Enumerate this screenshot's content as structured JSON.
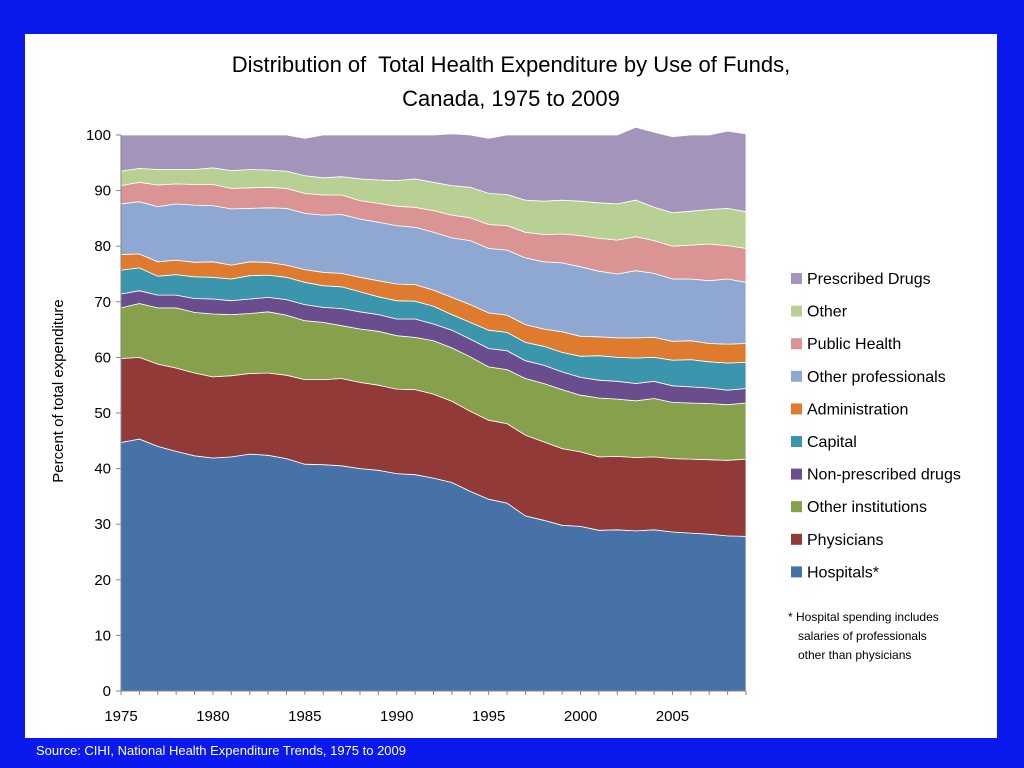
{
  "slide": {
    "source": "Source: CIHI, National Health Expenditure Trends, 1975 to 2009",
    "footnote": [
      "* Hospital spending includes",
      "salaries of professionals",
      "other than physicians"
    ]
  },
  "chart_data": {
    "type": "area",
    "stacked": true,
    "title": [
      "Distribution of  Total Health Expenditure by Use of Funds,",
      "Canada, 1975 to 2009"
    ],
    "ylabel": "Percent of total expenditure",
    "xlabel": "",
    "ylim": [
      0,
      100
    ],
    "yticks": [
      0,
      10,
      20,
      30,
      40,
      50,
      60,
      70,
      80,
      90,
      100
    ],
    "xlim": [
      1975,
      2009
    ],
    "xticks": [
      1975,
      1980,
      1985,
      1990,
      1995,
      2000,
      2005
    ],
    "legend_position": "right",
    "x": [
      1975,
      1976,
      1977,
      1978,
      1979,
      1980,
      1981,
      1982,
      1983,
      1984,
      1985,
      1986,
      1987,
      1988,
      1989,
      1990,
      1991,
      1992,
      1993,
      1994,
      1995,
      1996,
      1997,
      1998,
      1999,
      2000,
      2001,
      2002,
      2003,
      2004,
      2005,
      2006,
      2007,
      2008,
      2009
    ],
    "series": [
      {
        "name": "Hospitals*",
        "color": "#4672a8",
        "values": [
          44.7,
          45.3,
          44.0,
          43.1,
          42.3,
          41.9,
          42.1,
          42.6,
          42.4,
          41.8,
          40.8,
          40.7,
          40.5,
          40.0,
          39.7,
          39.1,
          38.9,
          38.3,
          37.5,
          35.9,
          34.5,
          33.8,
          31.5,
          30.7,
          29.8,
          29.6,
          28.9,
          29.0,
          28.8,
          29.0,
          28.6,
          28.4,
          28.2,
          27.9,
          27.8
        ]
      },
      {
        "name": "Physicians",
        "color": "#913a38",
        "values": [
          15.1,
          14.7,
          14.8,
          15.0,
          14.9,
          14.6,
          14.6,
          14.5,
          14.8,
          15.0,
          15.2,
          15.3,
          15.7,
          15.5,
          15.3,
          15.2,
          15.3,
          15.1,
          14.6,
          14.4,
          14.2,
          14.3,
          14.5,
          14.1,
          13.8,
          13.4,
          13.2,
          13.2,
          13.2,
          13.1,
          13.2,
          13.3,
          13.4,
          13.6,
          13.9
        ]
      },
      {
        "name": "Other institutions",
        "color": "#86a04b",
        "values": [
          9.1,
          9.7,
          10.1,
          10.8,
          10.9,
          11.3,
          11.0,
          10.8,
          11.0,
          10.8,
          10.6,
          10.3,
          9.5,
          9.6,
          9.7,
          9.6,
          9.4,
          9.6,
          9.6,
          9.8,
          9.6,
          9.7,
          10.2,
          10.5,
          10.6,
          10.2,
          10.6,
          10.3,
          10.2,
          10.5,
          10.1,
          10.1,
          10.1,
          10.0,
          10.1
        ]
      },
      {
        "name": "Non-prescribed drugs",
        "color": "#6a4d8f",
        "values": [
          2.5,
          2.3,
          2.3,
          2.3,
          2.5,
          2.7,
          2.5,
          2.6,
          2.6,
          2.8,
          2.9,
          2.7,
          3.1,
          3.1,
          3.0,
          3.0,
          3.3,
          3.0,
          3.2,
          3.2,
          3.3,
          3.4,
          3.2,
          3.3,
          3.2,
          3.2,
          3.2,
          3.2,
          3.1,
          3.1,
          3.0,
          2.9,
          2.8,
          2.6,
          2.6
        ]
      },
      {
        "name": "Capital",
        "color": "#3b96ad",
        "values": [
          4.3,
          4.1,
          3.4,
          3.7,
          3.9,
          3.9,
          3.9,
          4.2,
          4.0,
          4.0,
          4.0,
          3.9,
          3.9,
          3.6,
          3.2,
          3.3,
          3.2,
          3.2,
          2.8,
          3.0,
          3.3,
          3.3,
          3.3,
          3.4,
          3.5,
          3.8,
          4.4,
          4.3,
          4.6,
          4.3,
          4.6,
          4.9,
          4.7,
          4.9,
          4.7
        ]
      },
      {
        "name": "Administration",
        "color": "#de7b2e",
        "values": [
          2.8,
          2.5,
          2.6,
          2.6,
          2.6,
          2.8,
          2.5,
          2.5,
          2.3,
          2.2,
          2.3,
          2.4,
          2.4,
          2.6,
          2.9,
          3.0,
          3.0,
          2.9,
          3.1,
          3.2,
          3.1,
          3.1,
          3.2,
          3.1,
          3.7,
          3.6,
          3.4,
          3.5,
          3.6,
          3.6,
          3.4,
          3.4,
          3.3,
          3.4,
          3.4
        ]
      },
      {
        "name": "Other professionals",
        "color": "#8ea8d2",
        "values": [
          9.1,
          9.4,
          9.9,
          10.1,
          10.3,
          10.1,
          10.1,
          9.6,
          9.8,
          10.2,
          10.1,
          10.3,
          10.6,
          10.5,
          10.5,
          10.5,
          10.3,
          10.4,
          10.7,
          11.5,
          11.6,
          11.7,
          12.0,
          12.1,
          12.4,
          12.5,
          11.8,
          11.5,
          12.1,
          11.5,
          11.2,
          11.1,
          11.3,
          11.7,
          11.0
        ]
      },
      {
        "name": "Public Health",
        "color": "#d99493",
        "values": [
          3.3,
          3.5,
          3.9,
          3.6,
          3.7,
          3.8,
          3.7,
          3.7,
          3.7,
          3.6,
          3.6,
          3.6,
          3.5,
          3.3,
          3.4,
          3.5,
          3.6,
          3.9,
          4.1,
          4.1,
          4.3,
          4.4,
          4.6,
          4.9,
          5.2,
          5.6,
          5.9,
          6.1,
          6.1,
          5.9,
          5.9,
          6.1,
          6.6,
          6.0,
          6.1
        ]
      },
      {
        "name": "Other",
        "color": "#b9d095",
        "values": [
          2.6,
          2.5,
          2.8,
          2.6,
          2.7,
          3.0,
          3.2,
          3.3,
          3.1,
          3.1,
          3.2,
          3.1,
          3.3,
          3.9,
          4.2,
          4.6,
          5.1,
          5.1,
          5.3,
          5.5,
          5.6,
          5.6,
          5.8,
          6.0,
          6.1,
          6.2,
          6.4,
          6.5,
          6.6,
          6.0,
          6.0,
          6.1,
          6.2,
          6.7,
          6.6
        ]
      },
      {
        "name": "Prescribed Drugs",
        "color": "#a394bb",
        "values": [
          6.5,
          6.0,
          6.2,
          6.2,
          6.2,
          5.9,
          6.4,
          6.2,
          6.3,
          6.5,
          6.7,
          7.7,
          7.5,
          7.9,
          8.1,
          8.2,
          7.9,
          8.5,
          9.3,
          9.4,
          9.9,
          10.7,
          11.7,
          11.9,
          11.7,
          11.9,
          12.2,
          12.4,
          13.1,
          13.5,
          13.7,
          13.7,
          13.4,
          13.9,
          14.0
        ]
      }
    ]
  }
}
